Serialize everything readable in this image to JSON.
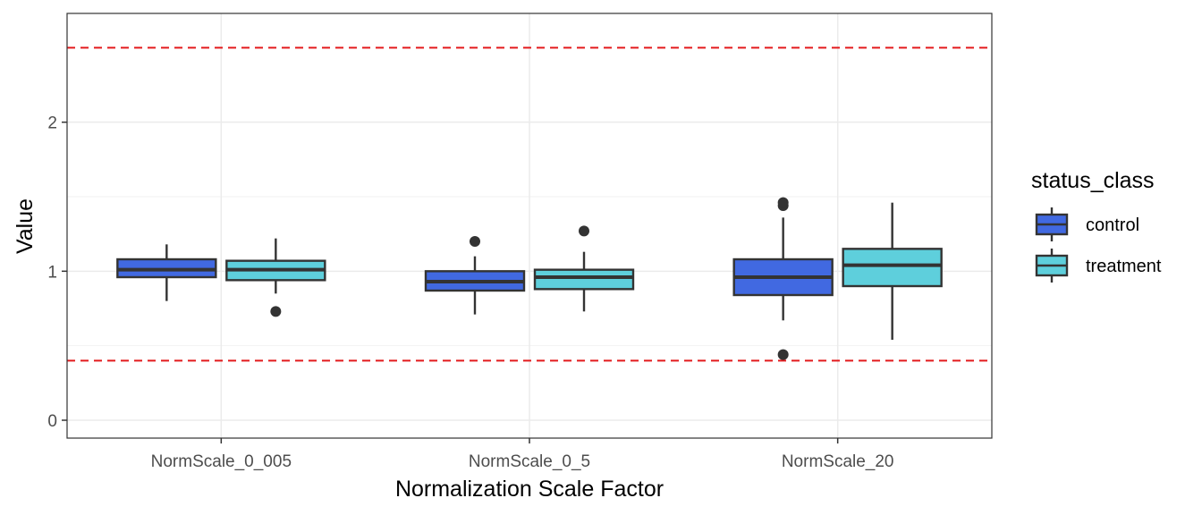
{
  "chart_data": {
    "type": "boxplot",
    "title": "",
    "xlabel": "Normalization Scale Factor",
    "ylabel": "Value",
    "ylim": [
      -0.12,
      2.73
    ],
    "yticks": [
      0,
      1,
      2
    ],
    "ytick_labels": [
      "0",
      "1",
      "2"
    ],
    "grid": true,
    "categories": [
      "NormScale_0_005",
      "NormScale_0_5",
      "NormScale_20"
    ],
    "reference_lines": [
      {
        "y": 2.5,
        "color": "#e31a1c",
        "style": "dashed"
      },
      {
        "y": 0.4,
        "color": "#e31a1c",
        "style": "dashed"
      }
    ],
    "legend": {
      "title": "status_class",
      "position": "right",
      "entries": [
        {
          "label": "control",
          "color": "#4169e1"
        },
        {
          "label": "treatment",
          "color": "#5ecfdc"
        }
      ]
    },
    "series": [
      {
        "name": "control",
        "color": "#4169e1",
        "boxes": [
          {
            "whisker_low": 0.8,
            "q1": 0.96,
            "median": 1.01,
            "q3": 1.08,
            "whisker_high": 1.18,
            "outliers": []
          },
          {
            "whisker_low": 0.71,
            "q1": 0.87,
            "median": 0.93,
            "q3": 1.0,
            "whisker_high": 1.1,
            "outliers": [
              1.2
            ]
          },
          {
            "whisker_low": 0.67,
            "q1": 0.84,
            "median": 0.96,
            "q3": 1.08,
            "whisker_high": 1.36,
            "outliers": [
              1.44,
              1.46,
              0.44
            ]
          }
        ]
      },
      {
        "name": "treatment",
        "color": "#5ecfdc",
        "boxes": [
          {
            "whisker_low": 0.85,
            "q1": 0.94,
            "median": 1.01,
            "q3": 1.07,
            "whisker_high": 1.22,
            "outliers": [
              0.73
            ]
          },
          {
            "whisker_low": 0.73,
            "q1": 0.88,
            "median": 0.96,
            "q3": 1.01,
            "whisker_high": 1.13,
            "outliers": [
              1.27
            ]
          },
          {
            "whisker_low": 0.54,
            "q1": 0.9,
            "median": 1.04,
            "q3": 1.15,
            "whisker_high": 1.46,
            "outliers": []
          }
        ]
      }
    ]
  }
}
